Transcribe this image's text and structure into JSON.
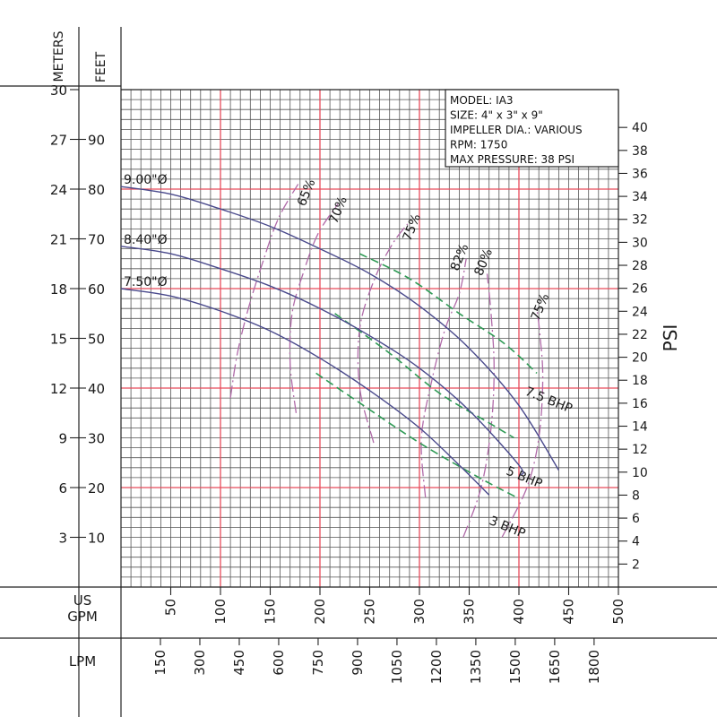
{
  "chart_data": {
    "type": "line",
    "info_box": [
      "MODEL: IA3",
      "SIZE: 4\" x 3\" x 9\"",
      "IMPELLER DIA.: VARIOUS",
      "RPM: 1750",
      "MAX PRESSURE: 38 PSI"
    ],
    "axes": {
      "x_us_gpm": {
        "label": "US GPM",
        "ticks": [
          50,
          100,
          150,
          200,
          250,
          300,
          350,
          400,
          450,
          500
        ],
        "range": [
          0,
          500
        ]
      },
      "x_lpm": {
        "label": "LPM",
        "ticks": [
          150,
          300,
          450,
          600,
          750,
          900,
          1050,
          1200,
          1350,
          1500,
          1650,
          1800
        ]
      },
      "y_meters": {
        "label": "METERS",
        "ticks": [
          3,
          6,
          9,
          12,
          15,
          18,
          21,
          24,
          27,
          30
        ]
      },
      "y_feet": {
        "label": "FEET",
        "ticks": [
          10,
          20,
          30,
          40,
          50,
          60,
          70,
          80,
          90
        ],
        "range": [
          0,
          100
        ]
      },
      "y_psi": {
        "label": "PSI",
        "ticks": [
          2,
          4,
          6,
          8,
          10,
          12,
          14,
          16,
          18,
          20,
          22,
          24,
          26,
          28,
          30,
          32,
          34,
          36,
          38,
          40
        ]
      }
    },
    "impeller_curves": [
      {
        "label": "9.00\"Ø",
        "points": [
          [
            0,
            80.5
          ],
          [
            50,
            79
          ],
          [
            100,
            76
          ],
          [
            150,
            72.5
          ],
          [
            200,
            68
          ],
          [
            250,
            63
          ],
          [
            300,
            56.5
          ],
          [
            350,
            48
          ],
          [
            400,
            36.5
          ],
          [
            440,
            23.5
          ]
        ]
      },
      {
        "label": "8.40\"Ø",
        "points": [
          [
            0,
            68.5
          ],
          [
            50,
            67
          ],
          [
            100,
            64
          ],
          [
            150,
            60.5
          ],
          [
            200,
            56
          ],
          [
            250,
            50.5
          ],
          [
            300,
            44
          ],
          [
            350,
            35.5
          ],
          [
            400,
            24.5
          ],
          [
            402,
            22.5
          ]
        ]
      },
      {
        "label": "7.50\"Ø",
        "points": [
          [
            0,
            60
          ],
          [
            50,
            58.5
          ],
          [
            100,
            55.5
          ],
          [
            150,
            51.5
          ],
          [
            200,
            46
          ],
          [
            250,
            39.5
          ],
          [
            300,
            32
          ],
          [
            340,
            24.5
          ],
          [
            370,
            18.5
          ]
        ]
      }
    ],
    "efficiency_curves": [
      {
        "label": "65%",
        "points": [
          [
            110,
            38
          ],
          [
            117,
            47
          ],
          [
            128,
            56
          ],
          [
            142,
            65
          ],
          [
            158,
            74
          ],
          [
            178,
            81
          ]
        ],
        "label_at": [
          190,
          79
        ]
      },
      {
        "label": "70%",
        "points": [
          [
            176,
            35
          ],
          [
            170,
            45
          ],
          [
            172,
            55
          ],
          [
            183,
            63
          ],
          [
            198,
            71
          ],
          [
            218,
            77
          ]
        ],
        "label_at": [
          222,
          75.5
        ]
      },
      {
        "label": "75%",
        "points": [
          [
            254,
            29
          ],
          [
            240,
            40
          ],
          [
            240,
            52
          ],
          [
            255,
            62
          ],
          [
            273,
            69
          ],
          [
            288,
            73
          ]
        ],
        "label_at": [
          296,
          72
        ]
      },
      {
        "label": "82%",
        "points": [
          [
            306,
            18
          ],
          [
            302,
            30
          ],
          [
            313,
            42
          ],
          [
            326,
            52
          ],
          [
            340,
            59
          ],
          [
            347,
            66
          ]
        ],
        "label_at": [
          344,
          66
        ]
      },
      {
        "label": "80%",
        "points": [
          [
            344,
            10
          ],
          [
            362,
            20
          ],
          [
            372,
            32
          ],
          [
            375,
            44
          ],
          [
            372,
            55
          ],
          [
            368,
            63
          ]
        ],
        "label_at": [
          368,
          65
        ]
      },
      {
        "label": "75%",
        "points": [
          [
            383,
            10
          ],
          [
            408,
            20
          ],
          [
            420,
            30
          ],
          [
            424,
            42
          ],
          [
            421,
            51
          ],
          [
            418,
            56
          ]
        ],
        "label_at": [
          425,
          56
        ]
      }
    ],
    "bhp_curves": [
      {
        "label": "7.5 BHP",
        "points": [
          [
            240,
            67
          ],
          [
            290,
            62
          ],
          [
            340,
            55
          ],
          [
            385,
            49
          ],
          [
            418,
            43
          ]
        ],
        "label_at": [
          436,
          38
        ]
      },
      {
        "label": "5 BHP",
        "points": [
          [
            215,
            55
          ],
          [
            270,
            47
          ],
          [
            320,
            39
          ],
          [
            370,
            33
          ],
          [
            395,
            30
          ]
        ],
        "label_at": [
          417,
          22
        ]
      },
      {
        "label": "3 BHP",
        "points": [
          [
            196,
            43
          ],
          [
            240,
            37
          ],
          [
            300,
            29
          ],
          [
            360,
            22
          ],
          [
            398,
            18
          ]
        ],
        "label_at": [
          400,
          12
        ]
      }
    ],
    "colors": {
      "impeller": "#4a4a8c",
      "efficiency": "#b06aa8",
      "bhp": "#2f9a55",
      "major_grid": "#e84a5a",
      "minor_grid": "#555555"
    }
  }
}
